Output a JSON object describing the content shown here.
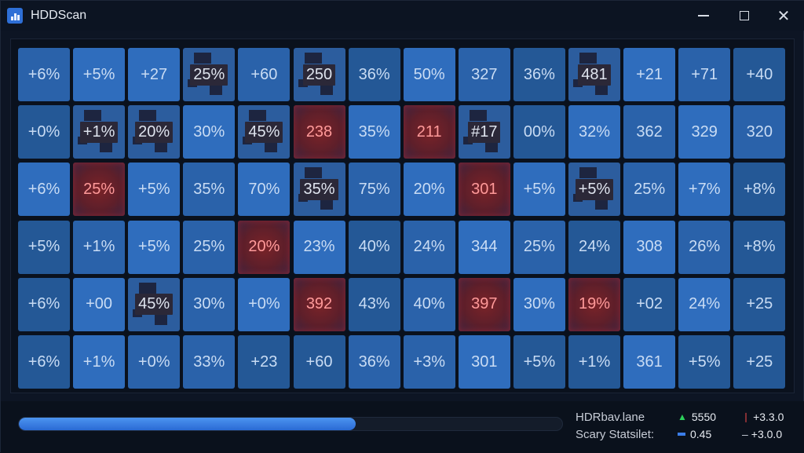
{
  "window": {
    "title": "HDDScan"
  },
  "grid": {
    "rows": [
      [
        {
          "label": "+6%",
          "style": "b1"
        },
        {
          "label": "+5%",
          "style": "b2"
        },
        {
          "label": "+27",
          "style": "b2"
        },
        {
          "label": "25%",
          "style": "dark"
        },
        {
          "label": "+60",
          "style": "b1"
        },
        {
          "label": "250",
          "style": "dark"
        },
        {
          "label": "36%",
          "style": "b3"
        },
        {
          "label": "50%",
          "style": "b2"
        },
        {
          "label": "327",
          "style": "b1"
        },
        {
          "label": "36%",
          "style": "b3"
        },
        {
          "label": "481",
          "style": "dark"
        },
        {
          "label": "+21",
          "style": "b2"
        },
        {
          "label": "+71",
          "style": "b1"
        },
        {
          "label": "+40",
          "style": "b3"
        }
      ],
      [
        {
          "label": "+0%",
          "style": "b3"
        },
        {
          "label": "+1%",
          "style": "dark"
        },
        {
          "label": "20%",
          "style": "dark"
        },
        {
          "label": "30%",
          "style": "b2"
        },
        {
          "label": "45%",
          "style": "dark"
        },
        {
          "label": "238",
          "style": "red"
        },
        {
          "label": "35%",
          "style": "b2"
        },
        {
          "label": "211",
          "style": "red"
        },
        {
          "label": "#17",
          "style": "dark"
        },
        {
          "label": "00%",
          "style": "b3"
        },
        {
          "label": "32%",
          "style": "b2"
        },
        {
          "label": "362",
          "style": "b1"
        },
        {
          "label": "329",
          "style": "b2"
        },
        {
          "label": "320",
          "style": "b1"
        }
      ],
      [
        {
          "label": "+6%",
          "style": "b2"
        },
        {
          "label": "25%",
          "style": "red"
        },
        {
          "label": "+5%",
          "style": "b2"
        },
        {
          "label": "35%",
          "style": "b1"
        },
        {
          "label": "70%",
          "style": "b2"
        },
        {
          "label": "35%",
          "style": "dark"
        },
        {
          "label": "75%",
          "style": "b1"
        },
        {
          "label": "20%",
          "style": "b2"
        },
        {
          "label": "301",
          "style": "red"
        },
        {
          "label": "+5%",
          "style": "b2"
        },
        {
          "label": "+5%",
          "style": "dark"
        },
        {
          "label": "25%",
          "style": "b1"
        },
        {
          "label": "+7%",
          "style": "b2"
        },
        {
          "label": "+8%",
          "style": "b3"
        }
      ],
      [
        {
          "label": "+5%",
          "style": "b3"
        },
        {
          "label": "+1%",
          "style": "b1"
        },
        {
          "label": "+5%",
          "style": "b2"
        },
        {
          "label": "25%",
          "style": "b1"
        },
        {
          "label": "20%",
          "style": "red"
        },
        {
          "label": "23%",
          "style": "b2"
        },
        {
          "label": "40%",
          "style": "b3"
        },
        {
          "label": "24%",
          "style": "b1"
        },
        {
          "label": "344",
          "style": "b2"
        },
        {
          "label": "25%",
          "style": "b1"
        },
        {
          "label": "24%",
          "style": "b3"
        },
        {
          "label": "308",
          "style": "b2"
        },
        {
          "label": "26%",
          "style": "b1"
        },
        {
          "label": "+8%",
          "style": "b3"
        }
      ],
      [
        {
          "label": "+6%",
          "style": "b3"
        },
        {
          "label": "+00",
          "style": "b2"
        },
        {
          "label": "45%",
          "style": "dark"
        },
        {
          "label": "30%",
          "style": "b1"
        },
        {
          "label": "+0%",
          "style": "b2"
        },
        {
          "label": "392",
          "style": "red"
        },
        {
          "label": "43%",
          "style": "b3"
        },
        {
          "label": "40%",
          "style": "b1"
        },
        {
          "label": "397",
          "style": "red"
        },
        {
          "label": "30%",
          "style": "b2"
        },
        {
          "label": "19%",
          "style": "red"
        },
        {
          "label": "+02",
          "style": "b3"
        },
        {
          "label": "24%",
          "style": "b2"
        },
        {
          "label": "+25",
          "style": "b3"
        }
      ],
      [
        {
          "label": "+6%",
          "style": "b3"
        },
        {
          "label": "+1%",
          "style": "b2"
        },
        {
          "label": "+0%",
          "style": "b1"
        },
        {
          "label": "33%",
          "style": "b1"
        },
        {
          "label": "+23",
          "style": "b3"
        },
        {
          "label": "+60",
          "style": "b3"
        },
        {
          "label": "36%",
          "style": "b1"
        },
        {
          "label": "+3%",
          "style": "b1"
        },
        {
          "label": "301",
          "style": "b2"
        },
        {
          "label": "+5%",
          "style": "b3"
        },
        {
          "label": "+1%",
          "style": "b3"
        },
        {
          "label": "361",
          "style": "b2"
        },
        {
          "label": "+5%",
          "style": "b3"
        },
        {
          "label": "+25",
          "style": "b3"
        }
      ]
    ]
  },
  "footer": {
    "progress": 0.62,
    "stat1_label": "HDRbav.lane",
    "stat2_label": "Scary Statsilet:",
    "val1": "5550",
    "val2": "+3.3.0",
    "val3": "0.45",
    "val4": "+3.0.0",
    "colors": {
      "accent": "#2e6fd6",
      "bad": "#c8323a",
      "ok": "#2ccf5a"
    }
  }
}
